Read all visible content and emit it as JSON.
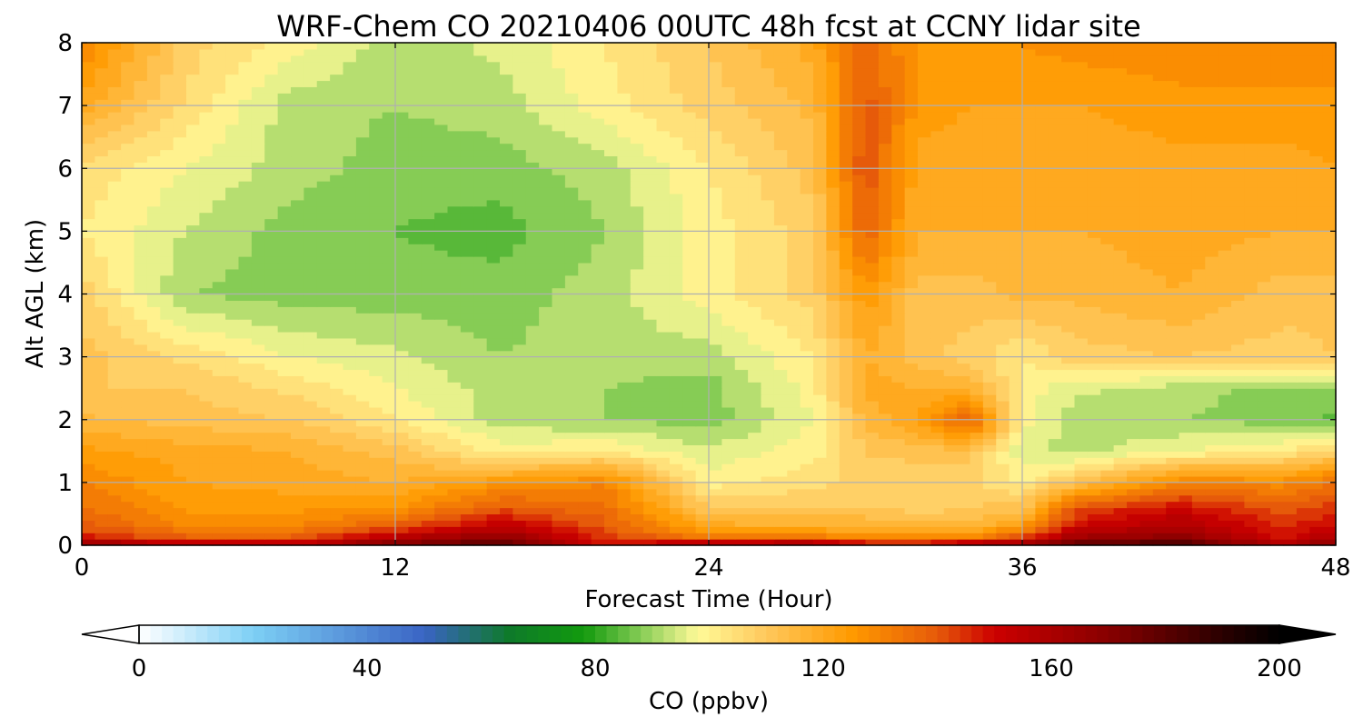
{
  "chart_data": {
    "type": "heatmap",
    "title": "WRF-Chem CO  20210406 00UTC 48h fcst at CCNY lidar site",
    "xlabel": "Forecast Time (Hour)",
    "ylabel": "Alt AGL (km)",
    "xlim": [
      0,
      48
    ],
    "ylim": [
      0,
      8
    ],
    "x_ticks": [
      "0",
      "12",
      "24",
      "36",
      "48"
    ],
    "y_ticks": [
      "0",
      "1",
      "2",
      "3",
      "4",
      "5",
      "6",
      "7",
      "8"
    ],
    "grid": true,
    "x": [
      0,
      4,
      8,
      12,
      16,
      20,
      24,
      28,
      30,
      32,
      34,
      36,
      38,
      42,
      46,
      48
    ],
    "y": [
      0,
      0.1,
      0.3,
      0.6,
      1,
      1.5,
      2,
      2.5,
      3,
      4,
      5,
      6,
      7,
      8
    ],
    "z": [
      [
        175,
        160,
        160,
        175,
        185,
        150,
        170,
        175,
        160,
        160,
        175,
        170,
        185,
        190,
        160,
        175
      ],
      [
        150,
        140,
        140,
        160,
        170,
        145,
        135,
        135,
        130,
        130,
        130,
        145,
        165,
        170,
        150,
        160
      ],
      [
        140,
        130,
        130,
        140,
        155,
        140,
        120,
        118,
        118,
        116,
        116,
        125,
        150,
        160,
        145,
        150
      ],
      [
        135,
        125,
        125,
        125,
        140,
        135,
        110,
        110,
        110,
        108,
        110,
        112,
        140,
        150,
        140,
        145
      ],
      [
        130,
        122,
        120,
        118,
        125,
        130,
        100,
        105,
        108,
        106,
        108,
        100,
        112,
        130,
        128,
        135
      ],
      [
        123,
        120,
        118,
        112,
        100,
        102,
        95,
        100,
        110,
        112,
        112,
        95,
        92,
        98,
        102,
        108
      ],
      [
        115,
        112,
        110,
        102,
        92,
        90,
        88,
        98,
        115,
        122,
        138,
        100,
        92,
        90,
        88,
        85
      ],
      [
        110,
        110,
        105,
        98,
        92,
        90,
        88,
        100,
        120,
        118,
        118,
        100,
        95,
        92,
        88,
        88
      ],
      [
        112,
        105,
        98,
        95,
        90,
        92,
        92,
        102,
        118,
        112,
        108,
        102,
        108,
        110,
        108,
        110
      ],
      [
        108,
        90,
        88,
        88,
        88,
        92,
        100,
        108,
        125,
        112,
        112,
        115,
        115,
        118,
        112,
        112
      ],
      [
        102,
        94,
        88,
        86,
        84,
        90,
        100,
        108,
        138,
        118,
        118,
        118,
        118,
        120,
        118,
        118
      ],
      [
        105,
        98,
        92,
        88,
        88,
        92,
        102,
        112,
        142,
        120,
        118,
        118,
        118,
        120,
        120,
        122
      ],
      [
        120,
        105,
        92,
        90,
        92,
        100,
        108,
        115,
        140,
        125,
        122,
        122,
        122,
        125,
        125,
        125
      ],
      [
        130,
        108,
        100,
        92,
        95,
        102,
        110,
        120,
        138,
        125,
        125,
        126,
        128,
        128,
        128,
        128
      ]
    ],
    "colorbar": {
      "label": "CO  (ppbv)",
      "min": 0,
      "max": 200,
      "ticks": [
        "0",
        "40",
        "80",
        "120",
        "160",
        "200"
      ],
      "extend": "both",
      "stops": [
        [
          0,
          "#ffffff"
        ],
        [
          20,
          "#7dd0f5"
        ],
        [
          50,
          "#3a64c4"
        ],
        [
          65,
          "#0e7a2a"
        ],
        [
          78,
          "#129a0e"
        ],
        [
          88,
          "#86cc55"
        ],
        [
          98,
          "#fffa98"
        ],
        [
          110,
          "#ffc85c"
        ],
        [
          125,
          "#ff9a00"
        ],
        [
          140,
          "#e65a0a"
        ],
        [
          150,
          "#cc0000"
        ],
        [
          170,
          "#880000"
        ],
        [
          190,
          "#2a0000"
        ],
        [
          200,
          "#000000"
        ]
      ]
    }
  }
}
